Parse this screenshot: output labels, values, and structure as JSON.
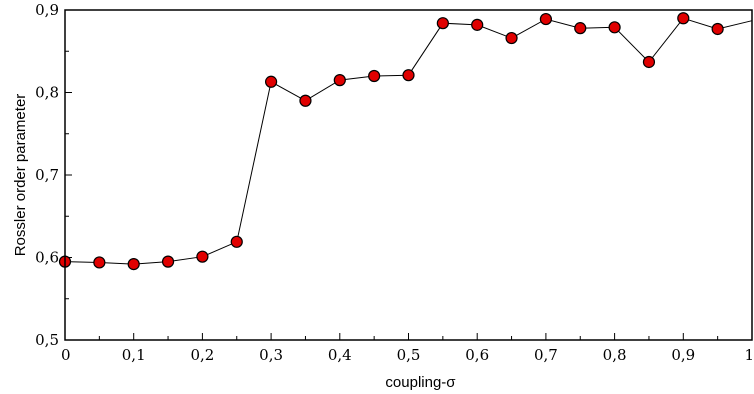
{
  "chart_data": {
    "type": "line",
    "xlabel": "coupling-σ",
    "ylabel": "Rossler order parameter",
    "xlim": [
      0,
      1
    ],
    "ylim": [
      0.5,
      0.9
    ],
    "x_ticks": [
      "0",
      "0,1",
      "0,2",
      "0,3",
      "0,4",
      "0,5",
      "0,6",
      "0,7",
      "0,8",
      "0,9",
      "1"
    ],
    "y_ticks": [
      "0,5",
      "0,6",
      "0,7",
      "0,8",
      "0,9"
    ],
    "grid": false,
    "series": [
      {
        "marker": "circle",
        "marker_color": "#e00000",
        "line_color": "#000000",
        "x": [
          0,
          0.05,
          0.1,
          0.15,
          0.2,
          0.25,
          0.3,
          0.35,
          0.4,
          0.45,
          0.5,
          0.55,
          0.6,
          0.65,
          0.7,
          0.75,
          0.8,
          0.85,
          0.9,
          0.95
        ],
        "y": [
          0.595,
          0.594,
          0.592,
          0.595,
          0.601,
          0.619,
          0.813,
          0.79,
          0.815,
          0.82,
          0.821,
          0.884,
          0.882,
          0.866,
          0.889,
          0.878,
          0.879,
          0.837,
          0.89,
          0.877
        ],
        "continues_to_edge": [
          1.0,
          0.887
        ]
      }
    ]
  }
}
